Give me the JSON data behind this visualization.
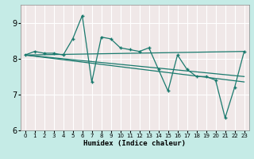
{
  "title": "",
  "xlabel": "Humidex (Indice chaleur)",
  "background_color": "#c5ebe6",
  "plot_bg_color": "#f0e8e8",
  "grid_color": "#ffffff",
  "line_color": "#1a7a6e",
  "xlim": [
    -0.5,
    23.5
  ],
  "ylim": [
    6,
    9.5
  ],
  "yticks": [
    6,
    7,
    8,
    9
  ],
  "xticks": [
    0,
    1,
    2,
    3,
    4,
    5,
    6,
    7,
    8,
    9,
    10,
    11,
    12,
    13,
    14,
    15,
    16,
    17,
    18,
    19,
    20,
    21,
    22,
    23
  ],
  "series1_x": [
    0,
    1,
    2,
    3,
    4,
    5,
    6,
    7,
    8,
    9,
    10,
    11,
    12,
    13,
    14,
    15,
    16,
    17,
    18,
    19,
    20,
    21,
    22,
    23
  ],
  "series1_y": [
    8.1,
    8.2,
    8.15,
    8.15,
    8.1,
    8.55,
    9.2,
    7.35,
    8.6,
    8.55,
    8.3,
    8.25,
    8.2,
    8.3,
    7.7,
    7.1,
    8.1,
    7.7,
    7.5,
    7.5,
    7.4,
    6.35,
    7.2,
    8.2
  ],
  "series2_x": [
    0,
    23
  ],
  "series2_y": [
    8.1,
    8.2
  ],
  "series3_x": [
    0,
    23
  ],
  "series3_y": [
    8.1,
    7.5
  ],
  "series4_x": [
    0,
    23
  ],
  "series4_y": [
    8.1,
    7.35
  ]
}
